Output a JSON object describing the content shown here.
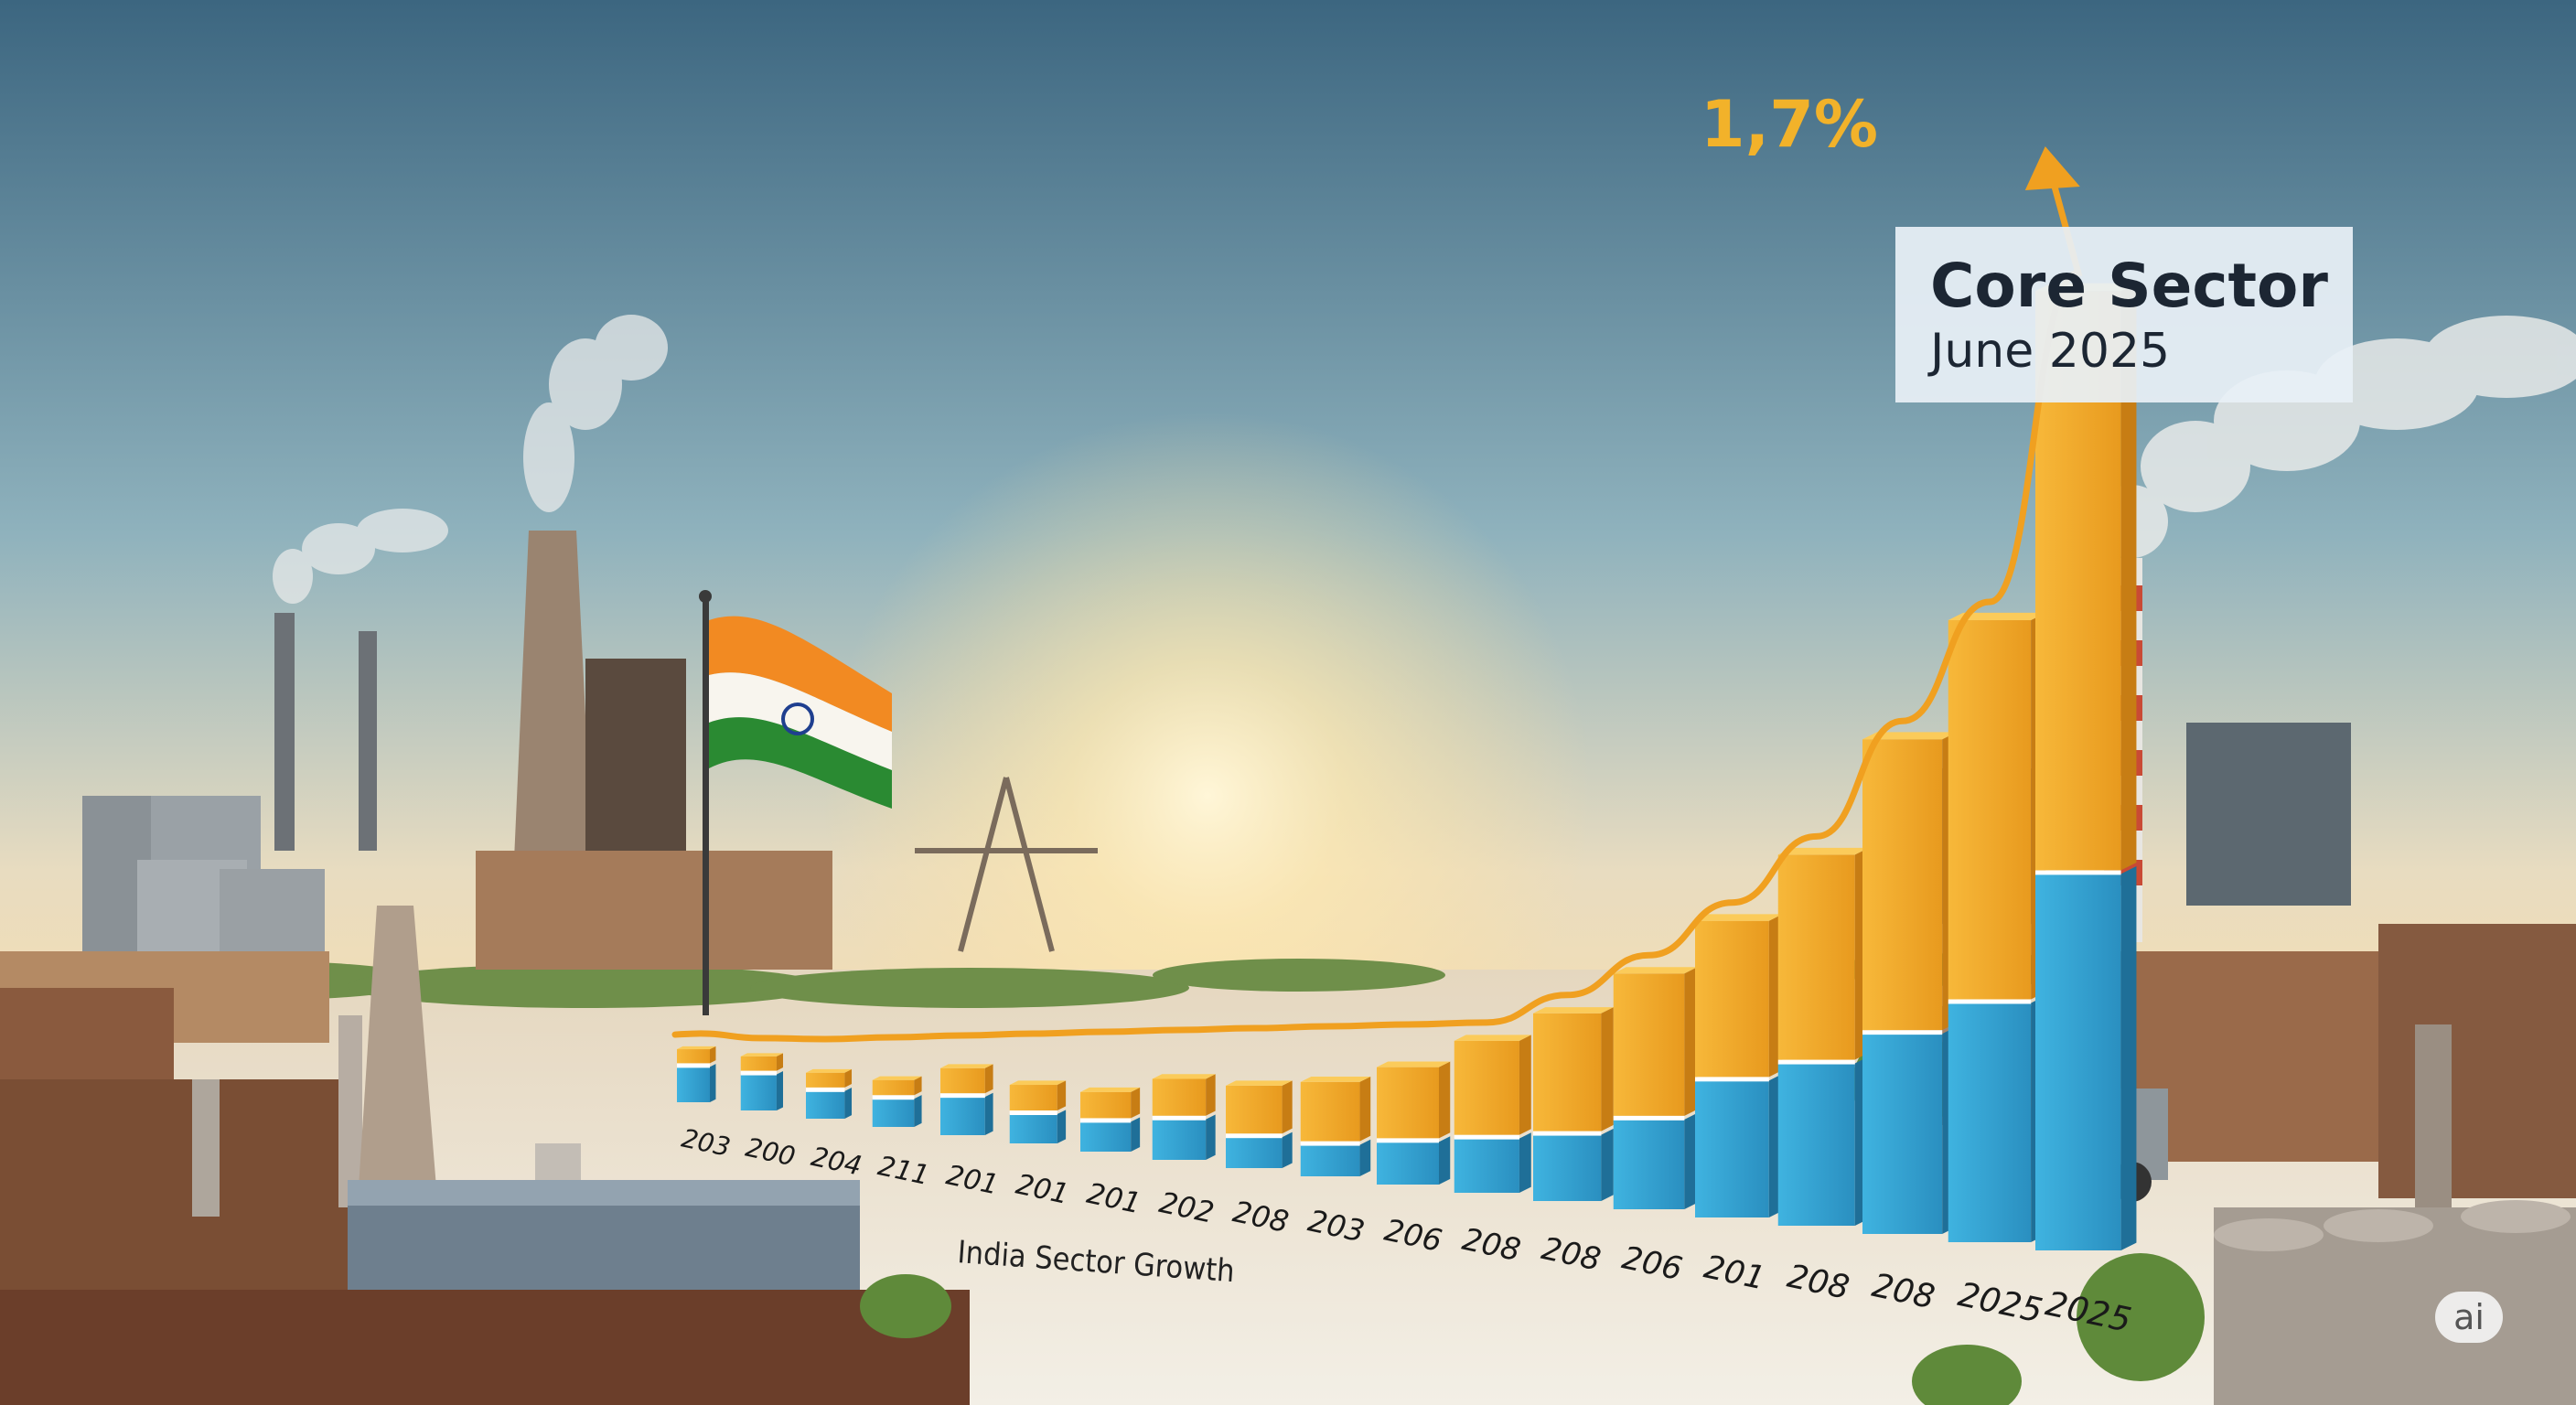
{
  "chart_data": {
    "type": "bar",
    "stacked": true,
    "categories": [
      "203",
      "200",
      "204",
      "211",
      "201",
      "201",
      "201",
      "202",
      "208",
      "203",
      "206",
      "208",
      "208",
      "206",
      "201",
      "208",
      "208",
      "2025",
      "2025"
    ],
    "series": [
      {
        "name": "",
        "color": "#2f9fd0",
        "values": [
          4,
          4,
          3,
          3,
          4,
          3,
          3,
          4,
          3,
          3,
          4,
          5,
          6,
          8,
          12,
          14,
          17,
          20,
          31
        ]
      },
      {
        "name": "",
        "color": "#f2a62a",
        "values": [
          2,
          2,
          2,
          2,
          3,
          3,
          3,
          4,
          5,
          6,
          7,
          9,
          11,
          13,
          14,
          18,
          25,
          32,
          48
        ]
      }
    ],
    "peak_label": "1,7%",
    "xlabel": "India Sector Growth",
    "ylabel": "",
    "ylim": [
      0,
      85
    ],
    "trend_line": true
  },
  "info_box": {
    "title": "Core Sector",
    "subtitle": "June 2025"
  },
  "badge": {
    "text": "ai"
  },
  "colors": {
    "sky_top": "#3c6680",
    "sky_horizon": "#f5deb2",
    "ground": "#efe8da",
    "bar_blue": "#2f9fd0",
    "bar_orange": "#f2a62a",
    "trend": "#f0a020",
    "label_gold": "#f2b22a"
  },
  "scene": {
    "flag": "india-flag",
    "background": "industrial-landscape"
  }
}
